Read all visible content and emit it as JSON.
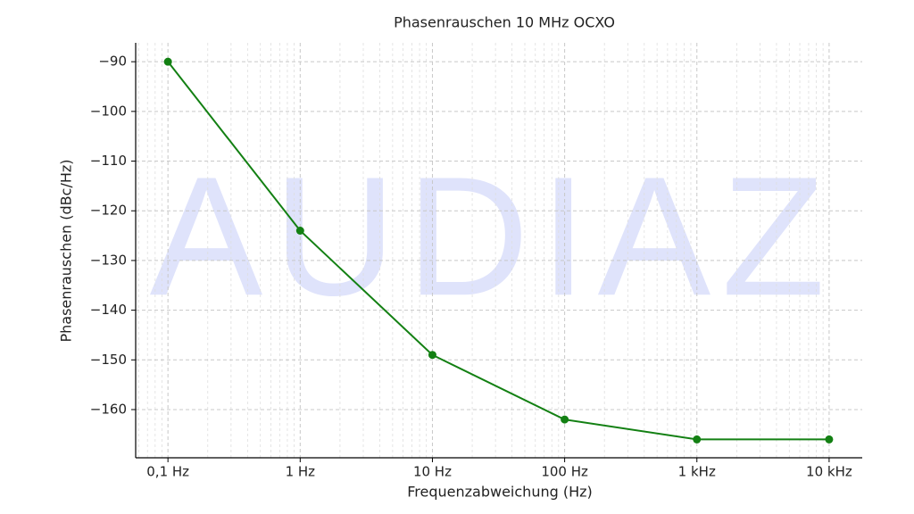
{
  "chart_data": {
    "type": "line",
    "title": "Phasenrauschen 10 MHz OCXO",
    "x_label": "Frequenzabweichung (Hz)",
    "y_label": "Phasenrauschen (dBc/Hz)",
    "watermark": "AUDIAZ",
    "x": [
      0.1,
      1,
      10,
      100,
      1000,
      10000
    ],
    "values": [
      -90,
      -124,
      -149,
      -162,
      -166,
      -166
    ],
    "color": "#138013",
    "xscale": "log",
    "xlim": [
      0.057,
      17800
    ],
    "ylim": [
      -169.7,
      -86.2
    ],
    "xticks": [
      {
        "value": 0.1,
        "label": "0,1 Hz"
      },
      {
        "value": 1,
        "label": "1 Hz"
      },
      {
        "value": 10,
        "label": "10 Hz"
      },
      {
        "value": 100,
        "label": "100 Hz"
      },
      {
        "value": 1000,
        "label": "1 kHz"
      },
      {
        "value": 10000,
        "label": "10 kHz"
      }
    ],
    "yticks": [
      {
        "value": -90,
        "label": "−90"
      },
      {
        "value": -100,
        "label": "−100"
      },
      {
        "value": -110,
        "label": "−110"
      },
      {
        "value": -120,
        "label": "−120"
      },
      {
        "value": -130,
        "label": "−130"
      },
      {
        "value": -140,
        "label": "−140"
      },
      {
        "value": -150,
        "label": "−150"
      },
      {
        "value": -160,
        "label": "−160"
      }
    ],
    "grid": true
  }
}
